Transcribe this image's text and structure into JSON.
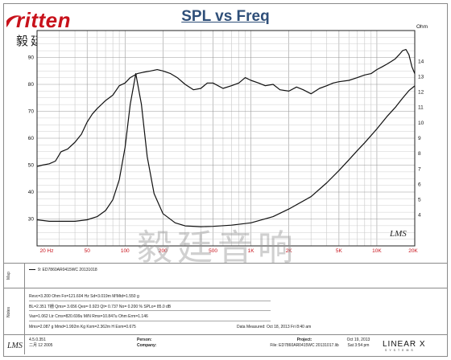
{
  "brand": {
    "logo_word": "ritten",
    "logo_cn": "毅廷音响"
  },
  "watermark": "毅廷音响",
  "chart_data": {
    "type": "line",
    "title": "SPL vs Freq",
    "xscale": "log",
    "xlim": [
      20,
      20000
    ],
    "ylim_left": [
      20,
      100
    ],
    "ylim_right": [
      2,
      16
    ],
    "y2label": "Ohm",
    "grid": true,
    "x_tick_labels": [
      "20 Hz",
      "50",
      "100",
      "200",
      "500",
      "1K",
      "2K",
      "5K",
      "10K",
      "20K"
    ],
    "y_tick_labels_left": [
      "30",
      "40",
      "50",
      "60",
      "70",
      "80",
      "90"
    ],
    "y_tick_labels_right": [
      "4",
      "5",
      "6",
      "7",
      "8",
      "9",
      "10",
      "11",
      "12",
      "13",
      "14"
    ],
    "series": [
      {
        "axis": "left",
        "color": "#111111",
        "x": [
          20,
          22,
          25,
          28,
          31,
          35,
          40,
          45,
          50,
          55,
          60,
          70,
          80,
          90,
          100,
          110,
          125,
          140,
          160,
          180,
          200,
          230,
          260,
          300,
          350,
          400,
          450,
          500,
          600,
          700,
          800,
          900,
          1000,
          1150,
          1300,
          1500,
          1700,
          2000,
          2300,
          2600,
          3000,
          3500,
          4000,
          4500,
          5000,
          6000,
          7000,
          8000,
          9000,
          10000,
          11000,
          12000,
          13000,
          14000,
          15000,
          16000,
          17000,
          18000,
          19000,
          20000
        ],
        "y": [
          49.5,
          50.0,
          50.5,
          51.5,
          55.0,
          56.0,
          58.5,
          61.5,
          66.0,
          69.0,
          71.0,
          74.0,
          76.0,
          79.5,
          80.5,
          82.5,
          84.0,
          84.5,
          85.0,
          85.5,
          85.0,
          84.0,
          82.5,
          80.0,
          78.0,
          78.5,
          80.5,
          80.5,
          78.5,
          79.5,
          80.5,
          82.5,
          81.5,
          80.5,
          79.5,
          80.0,
          78.0,
          77.5,
          79.0,
          78.0,
          76.5,
          78.5,
          79.5,
          80.5,
          81.0,
          81.5,
          82.5,
          83.5,
          84.0,
          85.5,
          86.5,
          87.5,
          88.5,
          89.5,
          91.0,
          92.5,
          93.0,
          91.0,
          86.5,
          84.0
        ]
      },
      {
        "axis": "right",
        "color": "#111111",
        "x": [
          20,
          25,
          30,
          40,
          50,
          60,
          70,
          80,
          90,
          100,
          110,
          121.6,
          135,
          150,
          170,
          200,
          250,
          300,
          400,
          500,
          700,
          1000,
          1500,
          2000,
          3000,
          4000,
          5000,
          6000,
          7000,
          8000,
          10000,
          12000,
          14000,
          16000,
          18000,
          20000
        ],
        "y": [
          3.7,
          3.6,
          3.6,
          3.6,
          3.7,
          3.9,
          4.3,
          5.0,
          6.3,
          8.4,
          11.2,
          13.2,
          11.2,
          7.8,
          5.4,
          4.1,
          3.5,
          3.3,
          3.25,
          3.27,
          3.35,
          3.5,
          3.9,
          4.4,
          5.2,
          6.1,
          6.9,
          7.6,
          8.2,
          8.7,
          9.6,
          10.4,
          11.0,
          11.6,
          12.1,
          12.4
        ]
      }
    ]
  },
  "map": {
    "label": "Map",
    "entry": "9: ED7860AR0415WC  20131018"
  },
  "notes": {
    "label": "Notes",
    "lines": [
      "Revc=3.200 Ohm  Fo=121.604 Hz  Sd=3.019m M!Mtd=1.550 g",
      "BL=2.351 T栅  Qms= 3.656  Qes= 0.923  Qt= 0.737  No= 0.200 %  SPLo= 85.0 dB",
      "Vas=1.062 Ltr  Cms=820.699u M/N  Rms=10.847u Ohm  Erm=1.146",
      "Mms=2.087 g  Mmd=1.992m Kg  Kxm=2.362m H  Exm=0.675"
    ],
    "date_measured": "Data Measured: Oct 18, 2013  Fri  8:40 am"
  },
  "footer": {
    "version": "4.5.0.351",
    "date_cn": "二月 12 2005",
    "person_label": "Person:",
    "company_label": "Company:",
    "project_label": "Project:",
    "file": "File: ED7860AR0415WC  20131017.lib",
    "printed_date": "Oct 19, 2013",
    "printed_time": "Sat  3:54 pm",
    "lms_foot": "LMS",
    "linearx": "LINEAR X",
    "linearx_sub": "SYSTEMS"
  },
  "chart_logo": "LMS"
}
